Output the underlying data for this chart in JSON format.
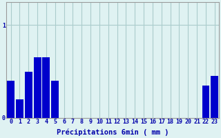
{
  "values": [
    0.4,
    0.2,
    0.5,
    0.65,
    0.65,
    0.4,
    0.0,
    0.0,
    0.0,
    0.0,
    0.0,
    0.0,
    0.0,
    0.0,
    0.0,
    0.0,
    0.0,
    0.0,
    0.0,
    0.0,
    0.0,
    0.0,
    0.35,
    0.45
  ],
  "xlabel": "Précipitations 6min ( mm )",
  "bar_color": "#0000cc",
  "background_color": "#dff2f2",
  "grid_color": "#aacccc",
  "text_color": "#0000aa",
  "ylim": [
    0,
    1.25
  ],
  "yticks": [
    0,
    1
  ],
  "num_bars": 24,
  "tick_fontsize": 6,
  "xlabel_fontsize": 7.5
}
